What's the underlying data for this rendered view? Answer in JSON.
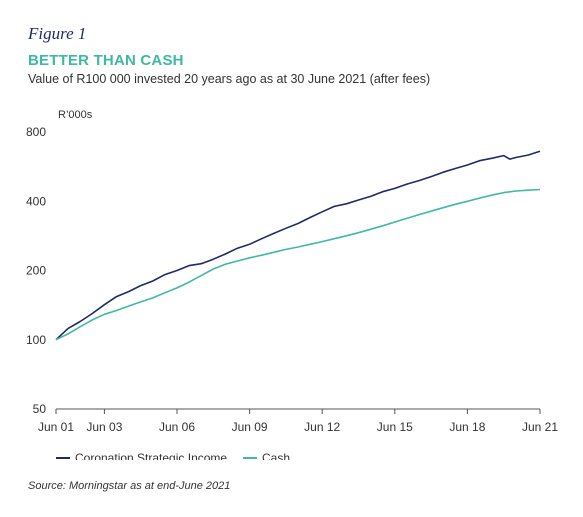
{
  "figure_label": "Figure 1",
  "chart_data": {
    "type": "line",
    "title": "BETTER THAN CASH",
    "subtitle": "Value of R100 000 invested 20 years ago as at 30 June 2021 (after fees)",
    "ylabel": "R’000s",
    "xlabel": "",
    "yscale": "log",
    "ylim": [
      50,
      800
    ],
    "yticks": [
      50,
      100,
      200,
      400,
      800
    ],
    "x_range": [
      "Jun 01",
      "Jun 21"
    ],
    "xticks": [
      "Jun 01",
      "Jun 03",
      "Jun 06",
      "Jun 09",
      "Jun 12",
      "Jun 15",
      "Jun 18",
      "Jun 21"
    ],
    "grid": false,
    "legend_position": "bottom-left",
    "colors": {
      "strategic_income": "#1f2a6b",
      "cash": "#3fb9a4",
      "title": "#3fb9a4"
    },
    "series": [
      {
        "name": "Coronation Strategic Income",
        "x": [
          2001.5,
          2002.0,
          2002.5,
          2003.0,
          2003.5,
          2004.0,
          2004.5,
          2005.0,
          2005.5,
          2006.0,
          2006.5,
          2007.0,
          2007.5,
          2008.0,
          2008.5,
          2009.0,
          2009.5,
          2010.0,
          2010.5,
          2011.0,
          2011.5,
          2012.0,
          2012.5,
          2013.0,
          2013.5,
          2014.0,
          2014.5,
          2015.0,
          2015.5,
          2016.0,
          2016.5,
          2017.0,
          2017.5,
          2018.0,
          2018.5,
          2019.0,
          2019.5,
          2020.0,
          2020.25,
          2020.5,
          2021.0,
          2021.5
        ],
        "y": [
          100,
          112,
          120,
          130,
          142,
          154,
          162,
          172,
          180,
          192,
          200,
          210,
          214,
          224,
          236,
          250,
          260,
          275,
          290,
          305,
          320,
          340,
          360,
          380,
          390,
          405,
          420,
          440,
          455,
          475,
          492,
          512,
          535,
          555,
          575,
          600,
          615,
          632,
          610,
          620,
          635,
          660
        ]
      },
      {
        "name": "Cash",
        "x": [
          2001.5,
          2002.0,
          2002.5,
          2003.0,
          2003.5,
          2004.0,
          2004.5,
          2005.0,
          2005.5,
          2006.0,
          2006.5,
          2007.0,
          2007.5,
          2008.0,
          2008.5,
          2009.0,
          2009.5,
          2010.0,
          2010.5,
          2011.0,
          2011.5,
          2012.0,
          2012.5,
          2013.0,
          2013.5,
          2014.0,
          2014.5,
          2015.0,
          2015.5,
          2016.0,
          2016.5,
          2017.0,
          2017.5,
          2018.0,
          2018.5,
          2019.0,
          2019.5,
          2020.0,
          2020.5,
          2021.0,
          2021.5
        ],
        "y": [
          100,
          106,
          114,
          122,
          129,
          134,
          140,
          146,
          152,
          160,
          168,
          178,
          190,
          203,
          213,
          220,
          227,
          233,
          240,
          247,
          253,
          260,
          267,
          275,
          283,
          292,
          302,
          313,
          325,
          337,
          350,
          362,
          375,
          388,
          400,
          413,
          425,
          436,
          443,
          447,
          450
        ]
      }
    ]
  },
  "source": "Source: Morningstar as at end-June 2021"
}
